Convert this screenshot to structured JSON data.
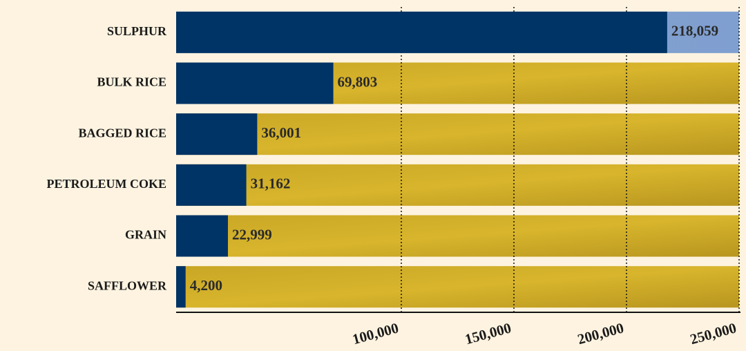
{
  "chart_data": {
    "type": "bar",
    "orientation": "horizontal",
    "categories": [
      "SULPHUR",
      "BULK RICE",
      "BAGGED RICE",
      "PETROLEUM COKE",
      "GRAIN",
      "SAFFLOWER"
    ],
    "values": [
      218059,
      69803,
      36001,
      31162,
      22999,
      4200
    ],
    "value_labels": [
      "218,059",
      "69,803",
      "36,001",
      "31,162",
      "22,999",
      "4,200"
    ],
    "color": "#003366",
    "xlim": [
      0,
      250000
    ],
    "xticks": [
      {
        "value": 100000,
        "label": "100,000"
      },
      {
        "value": 150000,
        "label": "150,000"
      },
      {
        "value": 200000,
        "label": "200,000"
      },
      {
        "value": 250000,
        "label": "250,000"
      }
    ],
    "grid": true
  }
}
